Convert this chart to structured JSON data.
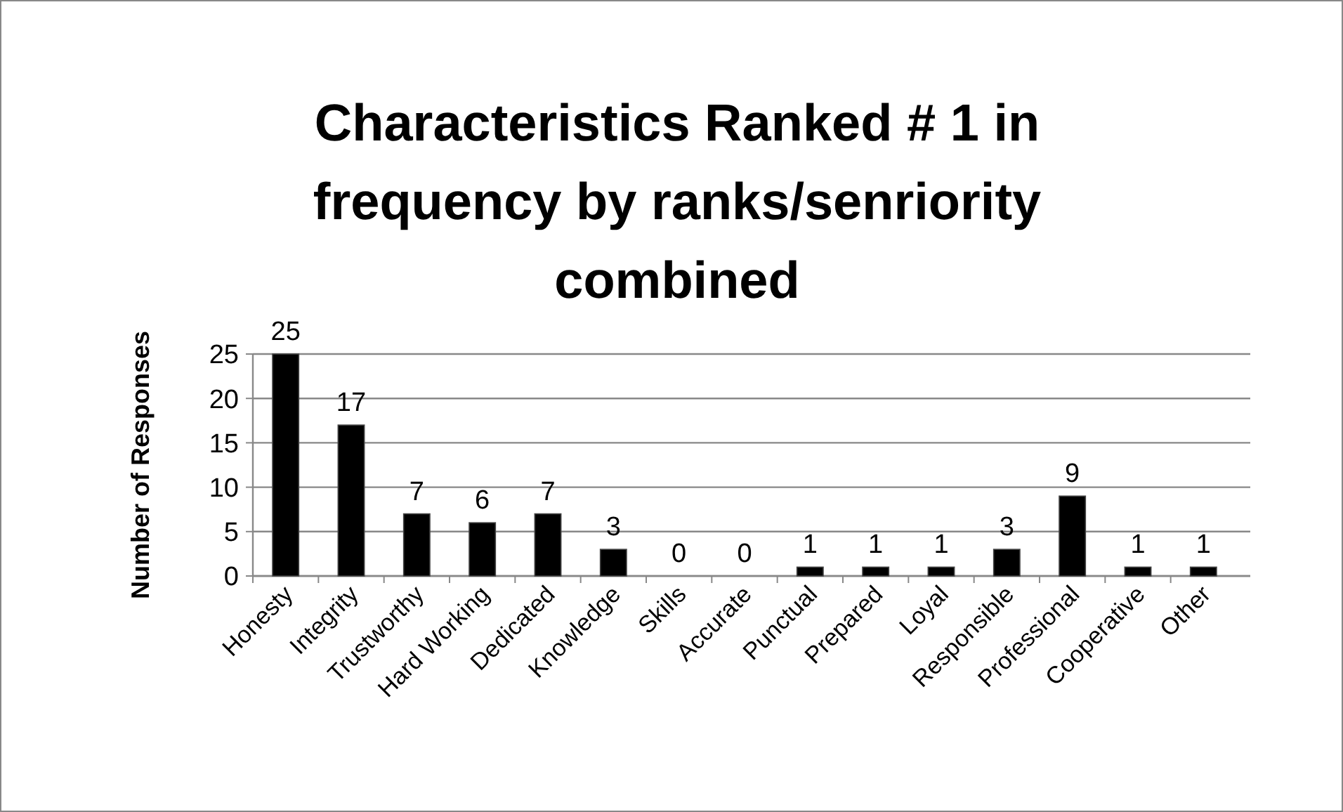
{
  "chart_data": {
    "type": "bar",
    "title": "Characteristics Ranked # 1 in frequency by ranks/senriority combined",
    "ylabel": "Number of Responses",
    "categories": [
      "Honesty",
      "Integrity",
      "Trustworthy",
      "Hard Working",
      "Dedicated",
      "Knowledge",
      "Skills",
      "Accurate",
      "Punctual",
      "Prepared",
      "Loyal",
      "Responsible",
      "Professional",
      "Cooperative",
      "Other"
    ],
    "values": [
      25,
      17,
      7,
      6,
      7,
      3,
      0,
      0,
      1,
      1,
      1,
      3,
      9,
      1,
      1
    ],
    "color": "#000000",
    "ylim": [
      0,
      25
    ],
    "yticks": [
      0,
      5,
      10,
      15,
      20,
      25
    ],
    "grid": "y",
    "data_labels": true
  }
}
